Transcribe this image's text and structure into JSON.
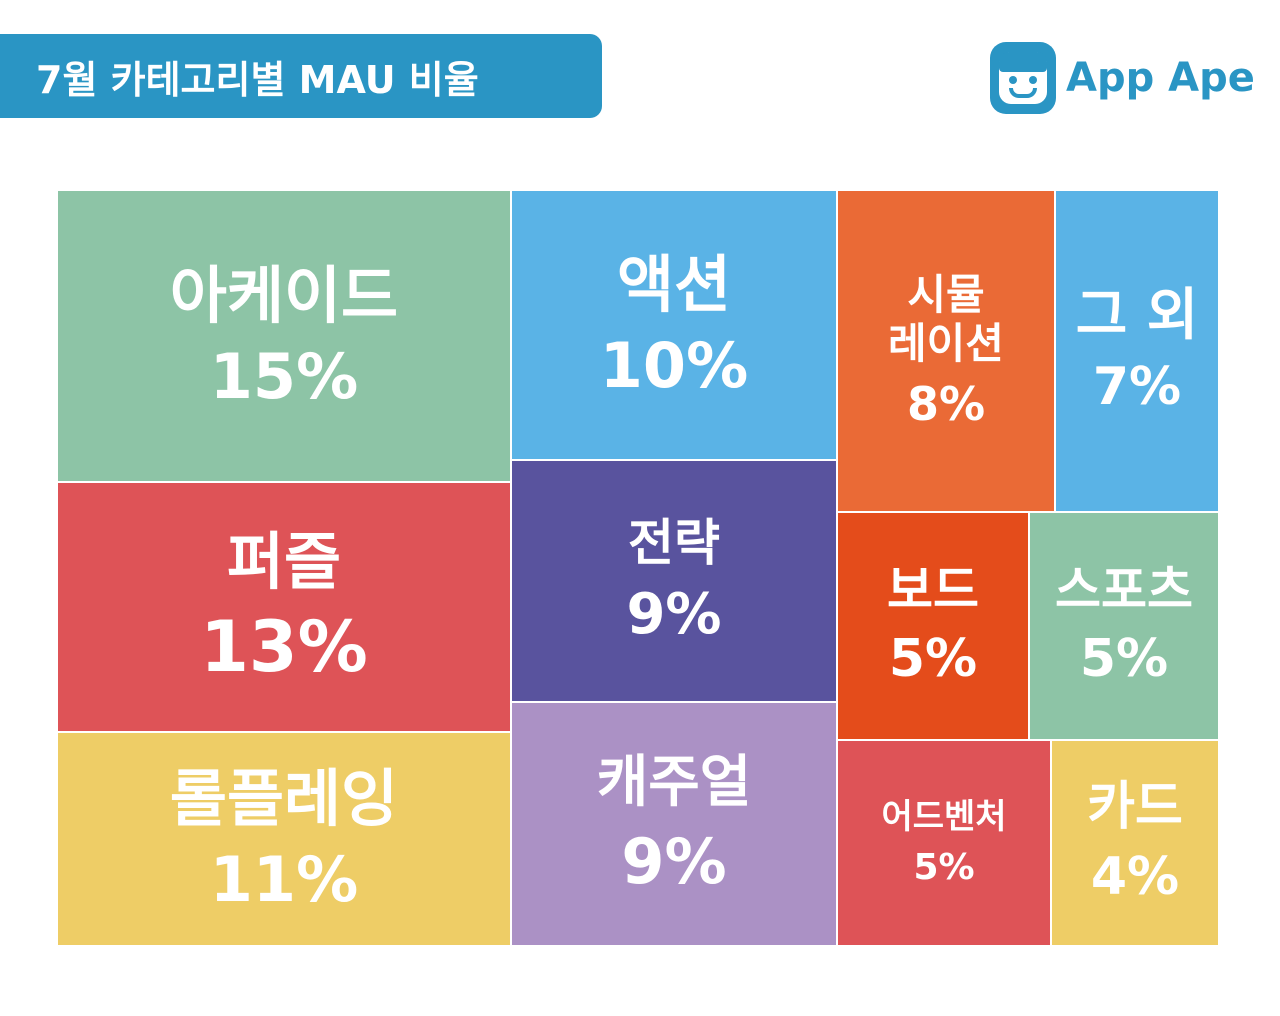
{
  "header": {
    "title": "7월 카테고리별 MAU 비율"
  },
  "logo": {
    "text": "App Ape",
    "icon": "ape-face-icon"
  },
  "colors": {
    "banner": "#2a95c4",
    "arcade": "#8dc4a6",
    "action": "#5ab3e6",
    "simulation": "#ea6a36",
    "other": "#5ab3e6",
    "puzzle": "#de5357",
    "strategy": "#59539e",
    "board": "#e44c1b",
    "sports": "#8dc4a6",
    "roleplaying": "#eecd66",
    "casual": "#ab91c5",
    "adventure": "#de5357",
    "card": "#eecd66"
  },
  "chart_data": {
    "type": "treemap",
    "title": "7월 카테고리별 MAU 비율",
    "items": [
      {
        "label": "아케이드",
        "value": 15,
        "text": "15%"
      },
      {
        "label": "퍼즐",
        "value": 13,
        "text": "13%"
      },
      {
        "label": "롤플레잉",
        "value": 11,
        "text": "11%"
      },
      {
        "label": "액션",
        "value": 10,
        "text": "10%"
      },
      {
        "label": "전략",
        "value": 9,
        "text": "9%"
      },
      {
        "label": "캐주얼",
        "value": 9,
        "text": "9%"
      },
      {
        "label": "시뮬\n레이션",
        "value": 8,
        "text": "8%"
      },
      {
        "label": "그 외",
        "value": 7,
        "text": "7%"
      },
      {
        "label": "보드",
        "value": 5,
        "text": "5%"
      },
      {
        "label": "스포츠",
        "value": 5,
        "text": "5%"
      },
      {
        "label": "어드벤처",
        "value": 5,
        "text": "5%"
      },
      {
        "label": "카드",
        "value": 4,
        "text": "4%"
      }
    ]
  }
}
